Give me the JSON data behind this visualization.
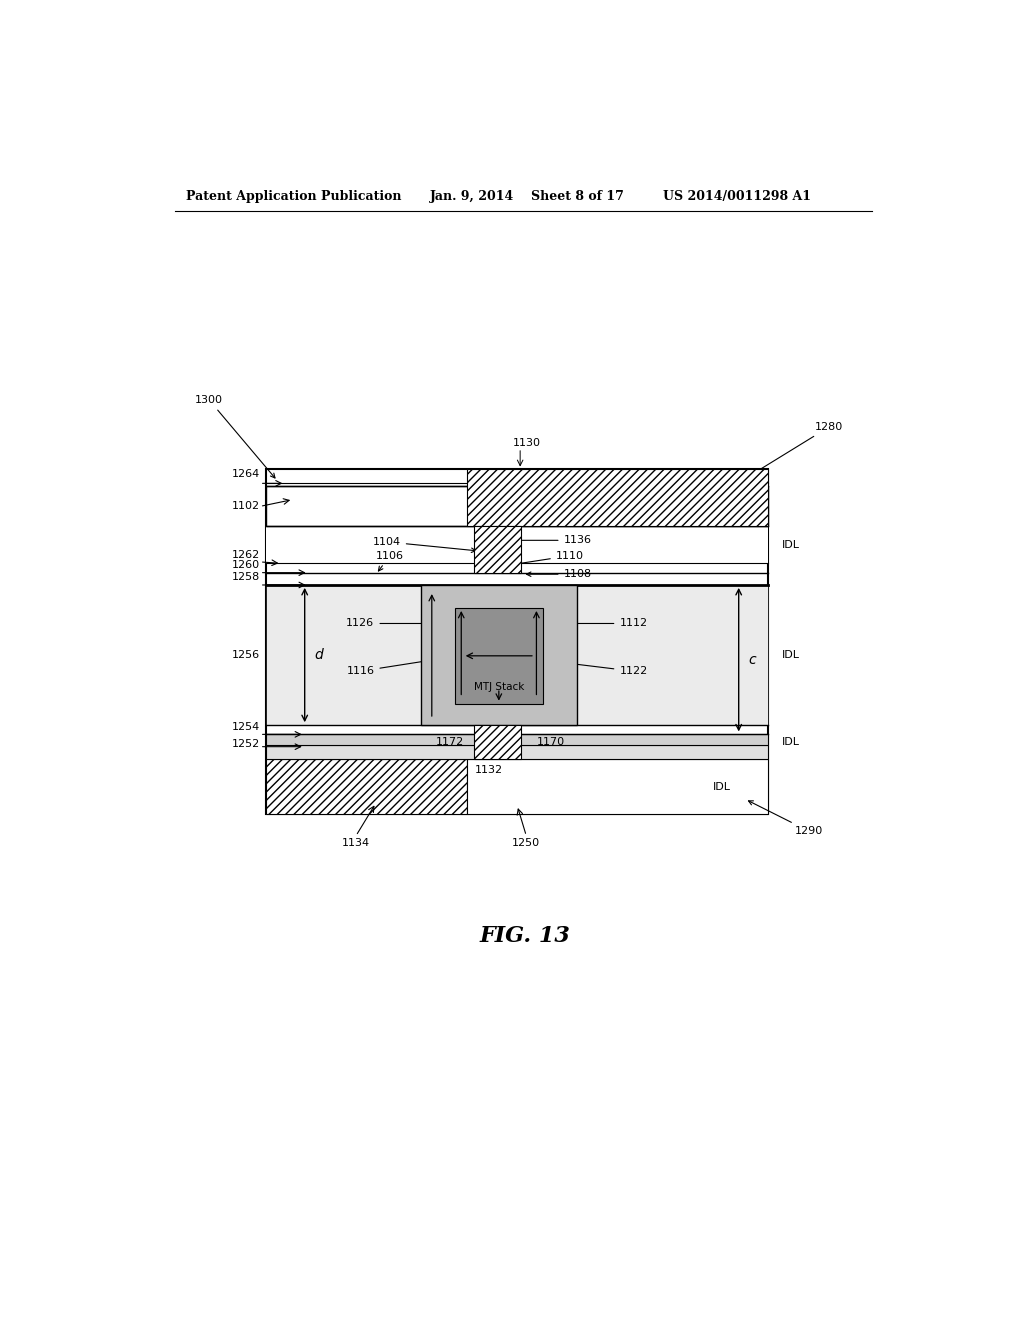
{
  "bg_color": "#ffffff",
  "header_text": "Patent Application Publication",
  "header_date": "Jan. 9, 2014",
  "header_sheet": "Sheet 8 of 17",
  "header_patent": "US 2014/0011298 A1",
  "fig_label": "FIG. 13"
}
